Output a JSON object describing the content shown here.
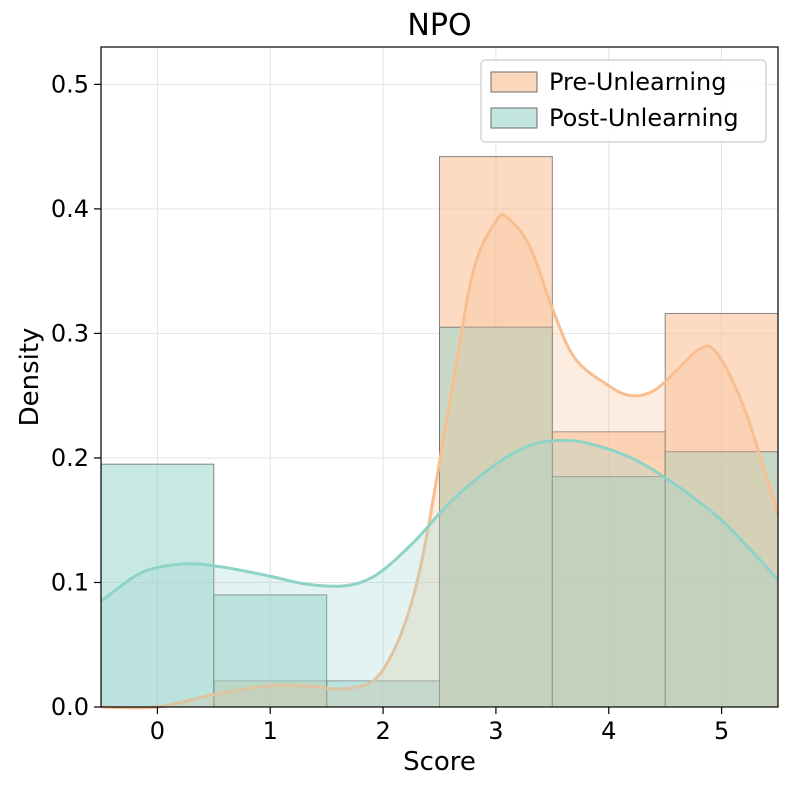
{
  "chart_data": {
    "type": "histogram",
    "title": "NPO",
    "xlabel": "Score",
    "ylabel": "Density",
    "xlim": [
      -0.5,
      5.5
    ],
    "ylim": [
      0,
      0.53
    ],
    "x_ticks": [
      0,
      1,
      2,
      3,
      4,
      5
    ],
    "y_ticks": [
      0.0,
      0.1,
      0.2,
      0.3,
      0.4,
      0.5
    ],
    "grid": true,
    "legend_position": "top-right",
    "series": [
      {
        "name": "Pre-Unlearning",
        "color": "#F9BE8F",
        "kde_color": "#F9BE8F",
        "bins": [
          {
            "x": 0,
            "value": 0.0
          },
          {
            "x": 1,
            "value": 0.021
          },
          {
            "x": 2,
            "value": 0.0
          },
          {
            "x": 3,
            "value": 0.442
          },
          {
            "x": 4,
            "value": 0.221
          },
          {
            "x": 5,
            "value": 0.316
          }
        ],
        "kde": [
          [
            -0.5,
            0.0
          ],
          [
            0.0,
            0.0
          ],
          [
            0.5,
            0.01
          ],
          [
            1.0,
            0.017
          ],
          [
            1.3,
            0.017
          ],
          [
            1.7,
            0.015
          ],
          [
            2.0,
            0.03
          ],
          [
            2.3,
            0.1
          ],
          [
            2.6,
            0.25
          ],
          [
            2.8,
            0.35
          ],
          [
            3.0,
            0.39
          ],
          [
            3.1,
            0.393
          ],
          [
            3.3,
            0.37
          ],
          [
            3.5,
            0.32
          ],
          [
            3.7,
            0.28
          ],
          [
            4.0,
            0.258
          ],
          [
            4.2,
            0.25
          ],
          [
            4.4,
            0.254
          ],
          [
            4.6,
            0.27
          ],
          [
            4.8,
            0.287
          ],
          [
            4.95,
            0.285
          ],
          [
            5.2,
            0.24
          ],
          [
            5.5,
            0.155
          ]
        ]
      },
      {
        "name": "Post-Unlearning",
        "color": "#9BD5CC",
        "kde_color": "#8FD3C7",
        "bins": [
          {
            "x": 0,
            "value": 0.195
          },
          {
            "x": 1,
            "value": 0.09
          },
          {
            "x": 2,
            "value": 0.021
          },
          {
            "x": 3,
            "value": 0.305
          },
          {
            "x": 4,
            "value": 0.185
          },
          {
            "x": 5,
            "value": 0.205
          }
        ],
        "kde": [
          [
            -0.5,
            0.085
          ],
          [
            -0.2,
            0.105
          ],
          [
            0.0,
            0.112
          ],
          [
            0.3,
            0.115
          ],
          [
            0.6,
            0.112
          ],
          [
            1.0,
            0.105
          ],
          [
            1.3,
            0.099
          ],
          [
            1.6,
            0.097
          ],
          [
            1.8,
            0.1
          ],
          [
            2.0,
            0.11
          ],
          [
            2.3,
            0.135
          ],
          [
            2.6,
            0.165
          ],
          [
            3.0,
            0.195
          ],
          [
            3.3,
            0.21
          ],
          [
            3.55,
            0.214
          ],
          [
            3.8,
            0.212
          ],
          [
            4.2,
            0.2
          ],
          [
            4.6,
            0.178
          ],
          [
            5.0,
            0.15
          ],
          [
            5.3,
            0.122
          ],
          [
            5.5,
            0.102
          ]
        ]
      }
    ]
  }
}
